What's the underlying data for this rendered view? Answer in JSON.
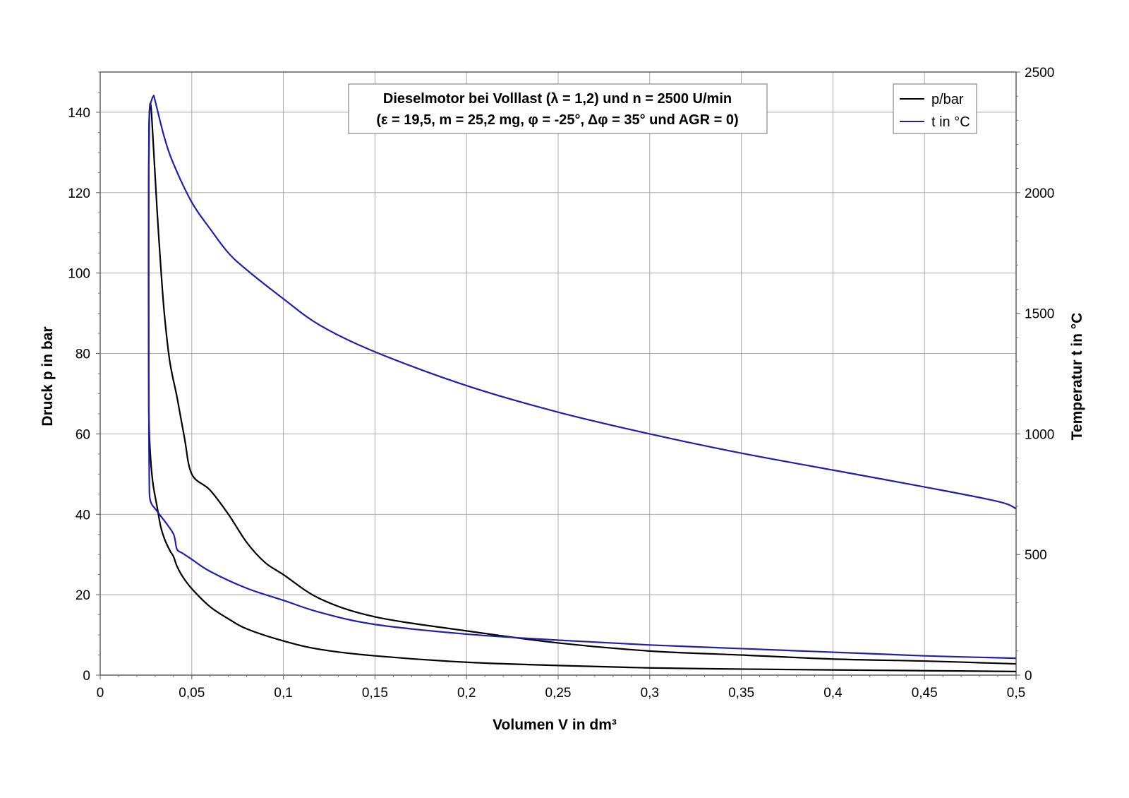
{
  "chart_data": {
    "type": "line",
    "title_line1": "Dieselmotor bei Volllast (λ = 1,2) und n = 2500 U/min",
    "title_line2": "(ε = 19,5, m = 25,2 mg, φ = -25°, Δφ = 35° und AGR = 0)",
    "xlabel": "Volumen V in dm³",
    "ylabel_left": "Druck p in bar",
    "ylabel_right": "Temperatur t in °C",
    "xlim": [
      0,
      0.5
    ],
    "ylim_left": [
      0,
      150
    ],
    "ylim_right": [
      0,
      2500
    ],
    "x_ticks": [
      "0",
      "0,05",
      "0,1",
      "0,15",
      "0,2",
      "0,25",
      "0,3",
      "0,35",
      "0,4",
      "0,45",
      "0,5"
    ],
    "y_left_ticks": [
      "0",
      "20",
      "40",
      "60",
      "80",
      "100",
      "120",
      "140"
    ],
    "y_right_ticks": [
      "0",
      "500",
      "1000",
      "1500",
      "2000",
      "2500"
    ],
    "grid": true,
    "legend_position": "top-right",
    "series": [
      {
        "name": "p/bar",
        "axis": "left",
        "color": "#000000",
        "x": [
          0.5,
          0.45,
          0.4,
          0.35,
          0.3,
          0.25,
          0.2,
          0.15,
          0.12,
          0.1,
          0.08,
          0.07,
          0.06,
          0.05,
          0.045,
          0.042,
          0.04,
          0.038,
          0.035,
          0.033,
          0.031,
          0.029,
          0.028,
          0.0275,
          0.027,
          0.0266,
          0.0265,
          0.0264,
          0.0265,
          0.0268,
          0.0272,
          0.0278,
          0.0285,
          0.0295,
          0.031,
          0.033,
          0.035,
          0.038,
          0.042,
          0.046,
          0.05,
          0.06,
          0.07,
          0.08,
          0.09,
          0.1,
          0.12,
          0.15,
          0.2,
          0.25,
          0.3,
          0.35,
          0.4,
          0.45,
          0.5
        ],
        "y": [
          0.9,
          1.1,
          1.3,
          1.5,
          1.8,
          2.4,
          3.2,
          4.8,
          6.4,
          8.5,
          11.5,
          14,
          17,
          21.5,
          24.5,
          27,
          29.5,
          31,
          34,
          37,
          42,
          47,
          51,
          54,
          58,
          64,
          72,
          100,
          125,
          138,
          142,
          141,
          136,
          128,
          116,
          102,
          90,
          78,
          69,
          59,
          50,
          46,
          40,
          33,
          28,
          25,
          19,
          14.5,
          11,
          8,
          6,
          5,
          4,
          3.5,
          2.8
        ],
        "note_x_order": "ignored"
      },
      {
        "name": "t in °C",
        "axis": "right",
        "color": "#1f1faa",
        "x": [
          0.5,
          0.45,
          0.4,
          0.35,
          0.3,
          0.25,
          0.2,
          0.15,
          0.12,
          0.1,
          0.08,
          0.06,
          0.05,
          0.045,
          0.042,
          0.041,
          0.04,
          0.037,
          0.033,
          0.03,
          0.028,
          0.027,
          0.0268,
          0.0266,
          0.0265,
          0.0265,
          0.0266,
          0.0268,
          0.0272,
          0.029,
          0.03,
          0.035,
          0.04,
          0.05,
          0.06,
          0.07,
          0.08,
          0.1,
          0.12,
          0.15,
          0.2,
          0.25,
          0.3,
          0.35,
          0.4,
          0.45,
          0.49,
          0.5
        ],
        "y": [
          70,
          80,
          95,
          110,
          125,
          145,
          170,
          210,
          260,
          310,
          360,
          430,
          480,
          505,
          520,
          555,
          585,
          620,
          660,
          690,
          710,
          740,
          800,
          1000,
          1500,
          2000,
          2250,
          2320,
          2360,
          2400,
          2380,
          2230,
          2120,
          1960,
          1850,
          1750,
          1680,
          1560,
          1450,
          1340,
          1200,
          1090,
          1000,
          920,
          850,
          780,
          720,
          690
        ]
      }
    ]
  }
}
